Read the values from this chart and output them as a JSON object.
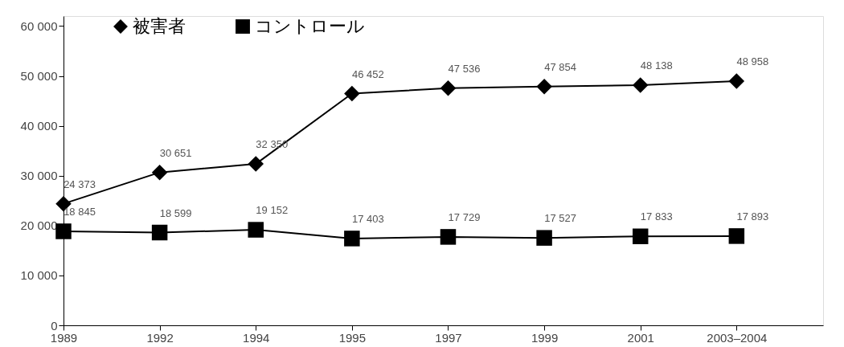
{
  "chart_data": {
    "type": "line",
    "categories": [
      "1989",
      "1992",
      "1994",
      "1995",
      "1997",
      "1999",
      "2001",
      "2003–2004"
    ],
    "ylim": [
      0,
      62000
    ],
    "yticks": [
      0,
      {
        "value": 10000,
        "label": "10 000"
      },
      {
        "value": 20000,
        "label": "20 000"
      },
      {
        "value": 30000,
        "label": "30 000"
      },
      {
        "value": 40000,
        "label": "40 000"
      },
      {
        "value": 50000,
        "label": "50 000"
      },
      {
        "value": 60000,
        "label": "60 000"
      }
    ],
    "series": [
      {
        "name": "被害者",
        "color": "#000000",
        "marker": "diamond",
        "values": [
          24373,
          30651,
          32350,
          46452,
          47536,
          47854,
          48138,
          48958
        ],
        "value_labels": [
          "24 373",
          "30 651",
          "32 350",
          "46 452",
          "47 536",
          "47 854",
          "48 138",
          "48 958"
        ]
      },
      {
        "name": "コントロール",
        "color": "#000000",
        "marker": "square",
        "values": [
          18845,
          18599,
          19152,
          17403,
          17729,
          17527,
          17833,
          17893
        ],
        "value_labels": [
          "18 845",
          "18 599",
          "19 152",
          "17 403",
          "17 729",
          "17 527",
          "17 833",
          "17 893"
        ]
      }
    ],
    "legend": "top",
    "grid": false
  }
}
